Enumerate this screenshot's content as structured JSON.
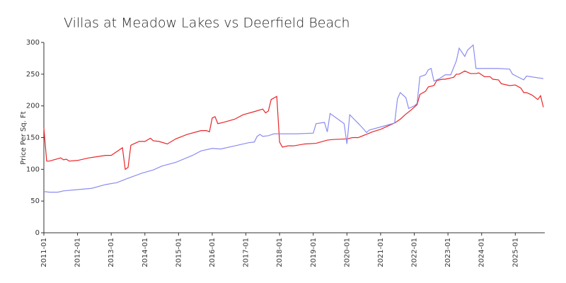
{
  "chart_data": {
    "type": "line",
    "title": "Villas at Meadow Lakes vs Deerfield Beach",
    "y_label": "Price Per Sq. Ft",
    "xlim": [
      "2011-01",
      "2025-11"
    ],
    "xticks": [
      "2011-01",
      "2012-01",
      "2013-01",
      "2014-01",
      "2015-01",
      "2016-01",
      "2017-01",
      "2018-01",
      "2019-01",
      "2020-01",
      "2021-01",
      "2022-01",
      "2023-01",
      "2024-01",
      "2025-01"
    ],
    "ylim": [
      0,
      300
    ],
    "yticks": [
      0,
      50,
      100,
      150,
      200,
      250,
      300
    ],
    "grid": false,
    "series": [
      {
        "color": "#e8262a",
        "x": [
          "2011-01",
          "2011-02",
          "2011-03",
          "2011-07",
          "2011-08",
          "2011-09",
          "2011-10",
          "2012-01",
          "2012-05",
          "2012-11",
          "2013-01",
          "2013-03",
          "2013-05",
          "2013-06",
          "2013-07",
          "2013-08",
          "2013-09",
          "2013-11",
          "2014-01",
          "2014-03",
          "2014-04",
          "2014-06",
          "2014-09",
          "2014-12",
          "2015-04",
          "2015-09",
          "2015-11",
          "2015-12",
          "2016-01",
          "2016-02",
          "2016-03",
          "2016-05",
          "2016-09",
          "2016-12",
          "2017-04",
          "2017-07",
          "2017-08",
          "2017-09",
          "2017-10",
          "2017-12",
          "2018-01",
          "2018-02",
          "2018-04",
          "2018-06",
          "2018-10",
          "2019-02",
          "2019-06",
          "2019-08",
          "2020-01",
          "2020-03",
          "2020-05",
          "2020-09",
          "2020-10",
          "2021-01",
          "2021-04",
          "2021-06",
          "2021-08",
          "2021-10",
          "2021-12",
          "2022-02",
          "2022-03",
          "2022-05",
          "2022-06",
          "2022-08",
          "2022-09",
          "2022-11",
          "2022-12",
          "2023-03",
          "2023-04",
          "2023-05",
          "2023-07",
          "2023-09",
          "2023-11",
          "2023-12",
          "2024-02",
          "2024-04",
          "2024-05",
          "2024-07",
          "2024-08",
          "2024-11",
          "2025-01",
          "2025-03",
          "2025-04",
          "2025-05",
          "2025-07",
          "2025-09",
          "2025-10",
          "2025-11"
        ],
        "values": [
          165,
          113,
          113,
          118,
          115,
          116,
          113,
          114,
          118,
          122,
          122,
          128,
          134,
          100,
          103,
          138,
          140,
          144,
          144,
          149,
          145,
          144,
          140,
          148,
          155,
          161,
          161,
          159,
          181,
          183,
          172,
          174,
          179,
          186,
          191,
          195,
          189,
          192,
          210,
          215,
          143,
          135,
          137,
          137,
          140,
          141,
          146,
          147,
          148,
          150,
          150,
          157,
          159,
          163,
          169,
          173,
          179,
          187,
          194,
          202,
          218,
          223,
          230,
          232,
          240,
          242,
          242,
          245,
          250,
          250,
          255,
          251,
          251,
          252,
          246,
          246,
          242,
          241,
          235,
          232,
          233,
          228,
          221,
          221,
          217,
          210,
          216,
          198
        ]
      },
      {
        "color": "#8c8cf0",
        "x": [
          "2011-01",
          "2011-03",
          "2011-06",
          "2011-08",
          "2012-01",
          "2012-06",
          "2012-11",
          "2013-03",
          "2013-07",
          "2013-12",
          "2014-04",
          "2014-07",
          "2014-12",
          "2015-06",
          "2015-09",
          "2016-01",
          "2016-04",
          "2016-09",
          "2017-02",
          "2017-04",
          "2017-05",
          "2017-06",
          "2017-07",
          "2017-09",
          "2017-11",
          "2018-01",
          "2018-07",
          "2019-01",
          "2019-02",
          "2019-05",
          "2019-06",
          "2019-07",
          "2019-12",
          "2020-01",
          "2020-02",
          "2020-06",
          "2020-08",
          "2020-09",
          "2021-02",
          "2021-06",
          "2021-07",
          "2021-08",
          "2021-10",
          "2021-11",
          "2022-01",
          "2022-02",
          "2022-03",
          "2022-05",
          "2022-06",
          "2022-07",
          "2022-08",
          "2022-10",
          "2022-12",
          "2023-02",
          "2023-04",
          "2023-05",
          "2023-07",
          "2023-08",
          "2023-10",
          "2023-11",
          "2024-04",
          "2024-07",
          "2024-11",
          "2024-12",
          "2025-04",
          "2025-05",
          "2025-11"
        ],
        "values": [
          65,
          64,
          64,
          66,
          68,
          70,
          76,
          79,
          86,
          94,
          99,
          105,
          111,
          122,
          129,
          133,
          132,
          137,
          142,
          143,
          152,
          155,
          152,
          153,
          156,
          156,
          156,
          157,
          172,
          174,
          159,
          188,
          172,
          140,
          186,
          168,
          158,
          162,
          168,
          173,
          211,
          221,
          213,
          196,
          200,
          204,
          246,
          249,
          257,
          259,
          239,
          243,
          249,
          249,
          271,
          291,
          278,
          288,
          296,
          259,
          259,
          259,
          258,
          250,
          241,
          247,
          243
        ]
      }
    ]
  }
}
